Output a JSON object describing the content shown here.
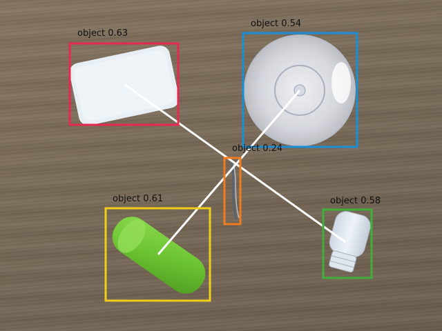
{
  "detections": [
    {
      "label": "object",
      "score": "0.63",
      "color": "#e8294f"
    },
    {
      "label": "object",
      "score": "0.54",
      "color": "#1a8fd6"
    },
    {
      "label": "object",
      "score": "0.24",
      "color": "#f07c22"
    },
    {
      "label": "object",
      "score": "0.61",
      "color": "#f2cc1a"
    },
    {
      "label": "object",
      "score": "0.58",
      "color": "#3fae3a"
    }
  ],
  "connector_color": "#ffffff"
}
